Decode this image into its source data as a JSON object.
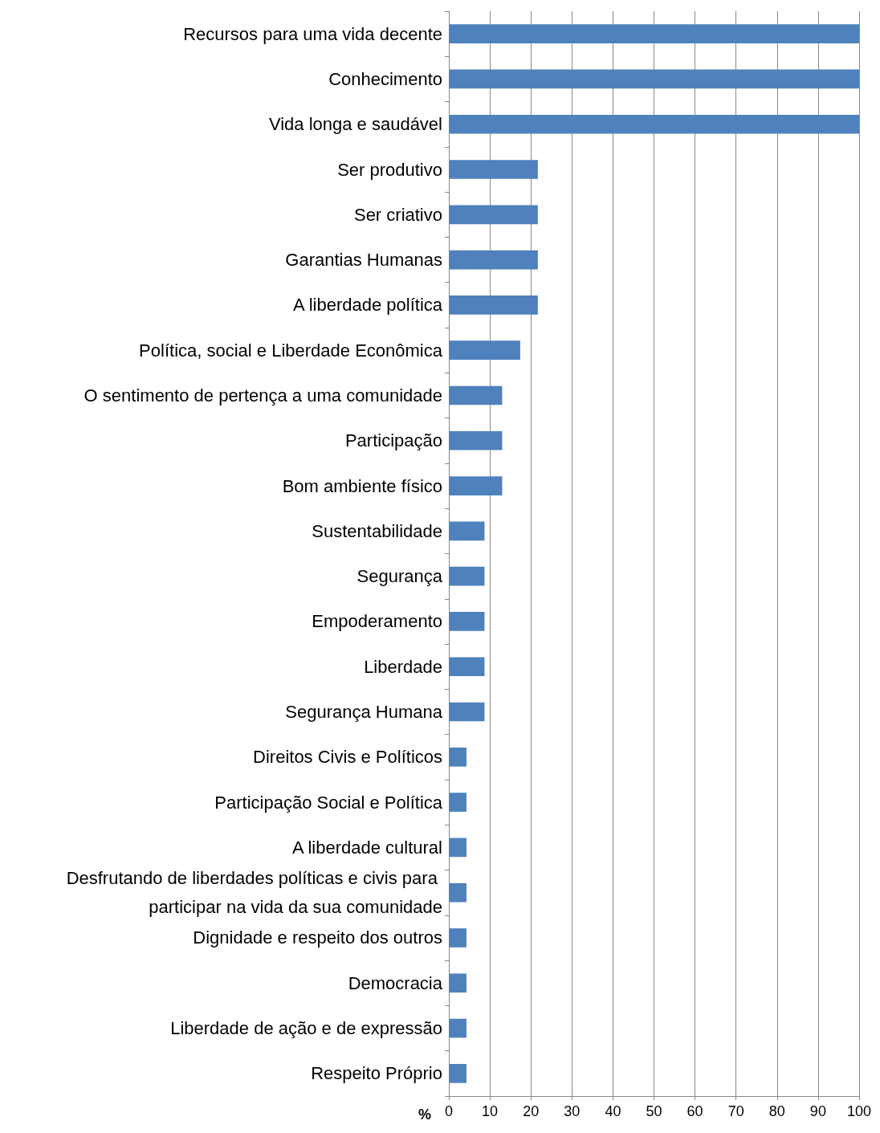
{
  "chart_data": {
    "type": "bar",
    "orientation": "horizontal",
    "xlabel": "%",
    "categories": [
      "Recursos para uma vida decente",
      "Conhecimento",
      "Vida longa e saudável",
      "Ser produtivo",
      "Ser criativo",
      "Garantias Humanas",
      "A liberdade política",
      "Política, social e Liberdade Econômica",
      "O sentimento de pertença a uma comunidade",
      "Participação",
      "Bom ambiente físico",
      "Sustentabilidade",
      "Segurança",
      "Empoderamento",
      "Liberdade",
      "Segurança Humana",
      "Direitos Civis e Políticos",
      "Participação Social e Política",
      "A liberdade cultural",
      "Desfrutando de liberdades políticas e civis para participar na vida da sua comunidade",
      "Dignidade e respeito dos outros",
      "Democracia",
      "Liberdade de ação e de expressão",
      "Respeito Próprio"
    ],
    "values": [
      100,
      100,
      100,
      21.7,
      21.7,
      21.7,
      21.7,
      17.4,
      13,
      13,
      13,
      8.7,
      8.7,
      8.7,
      8.7,
      8.7,
      4.3,
      4.3,
      4.3,
      4.3,
      4.3,
      4.3,
      4.3,
      4.3
    ],
    "color": "#4f81bd",
    "xlim": [
      0,
      100
    ],
    "xticks": [
      0,
      10,
      20,
      30,
      40,
      50,
      60,
      70,
      80,
      90,
      100
    ],
    "grid": "x"
  }
}
